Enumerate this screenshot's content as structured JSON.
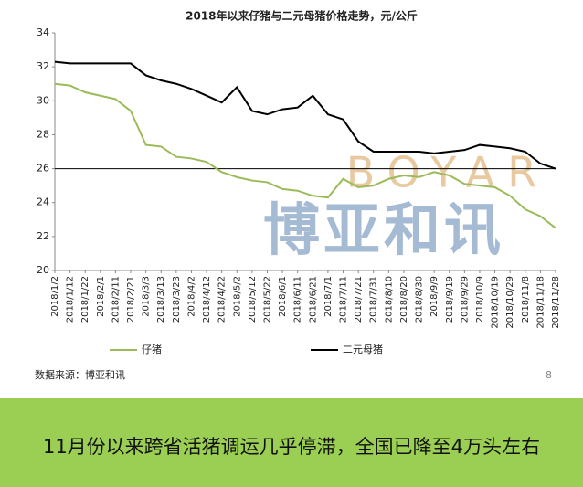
{
  "chart_data": {
    "type": "line",
    "title": "2018年以来仔猪与二元母猪价格走势，元/公斤",
    "categories": [
      "2018/1/2",
      "2018/1/12",
      "2018/1/22",
      "2018/2/1",
      "2018/2/11",
      "2018/2/21",
      "2018/3/3",
      "2018/3/13",
      "2018/3/23",
      "2018/4/2",
      "2018/4/12",
      "2018/4/22",
      "2018/5/2",
      "2018/5/12",
      "2018/5/22",
      "2018/6/1",
      "2018/6/11",
      "2018/6/21",
      "2018/7/1",
      "2018/7/11",
      "2018/7/21",
      "2018/7/31",
      "2018/8/10",
      "2018/8/20",
      "2018/8/30",
      "2018/9/9",
      "2018/9/19",
      "2018/9/29",
      "2018/10/9",
      "2018/10/19",
      "2018/10/29",
      "2018/11/8",
      "2018/11/18",
      "2018/11/28"
    ],
    "series": [
      {
        "name": "仔猪",
        "color": "#9bbb59",
        "values": [
          31.0,
          30.9,
          30.5,
          30.3,
          30.1,
          29.4,
          27.4,
          27.3,
          26.7,
          26.6,
          26.4,
          25.8,
          25.5,
          25.3,
          25.2,
          24.8,
          24.7,
          24.4,
          24.3,
          25.4,
          24.9,
          25.0,
          25.4,
          25.6,
          25.5,
          25.8,
          25.6,
          25.1,
          25.0,
          24.9,
          24.4,
          23.6,
          23.2,
          22.5
        ]
      },
      {
        "name": "二元母猪",
        "color": "#000000",
        "values": [
          32.3,
          32.2,
          32.2,
          32.2,
          32.2,
          32.2,
          31.5,
          31.2,
          31.0,
          30.7,
          30.3,
          29.9,
          30.8,
          29.4,
          29.2,
          29.5,
          29.6,
          30.3,
          29.2,
          28.9,
          27.6,
          27.0,
          27.0,
          27.0,
          27.0,
          26.9,
          27.0,
          27.1,
          27.4,
          27.3,
          27.2,
          27.0,
          26.3,
          26.0
        ]
      }
    ],
    "ylim": [
      20,
      34
    ],
    "yticks": [
      20,
      22,
      24,
      26,
      28,
      30,
      32,
      34
    ],
    "reference_line": 26,
    "watermark": {
      "latin": "BOYAR",
      "chinese": "博亚和讯"
    }
  },
  "footer": {
    "source": "数据来源：博亚和讯",
    "page": "8"
  },
  "banner": "11月份以来跨省活猪调运几乎停滞，全国已降至4万头左右"
}
